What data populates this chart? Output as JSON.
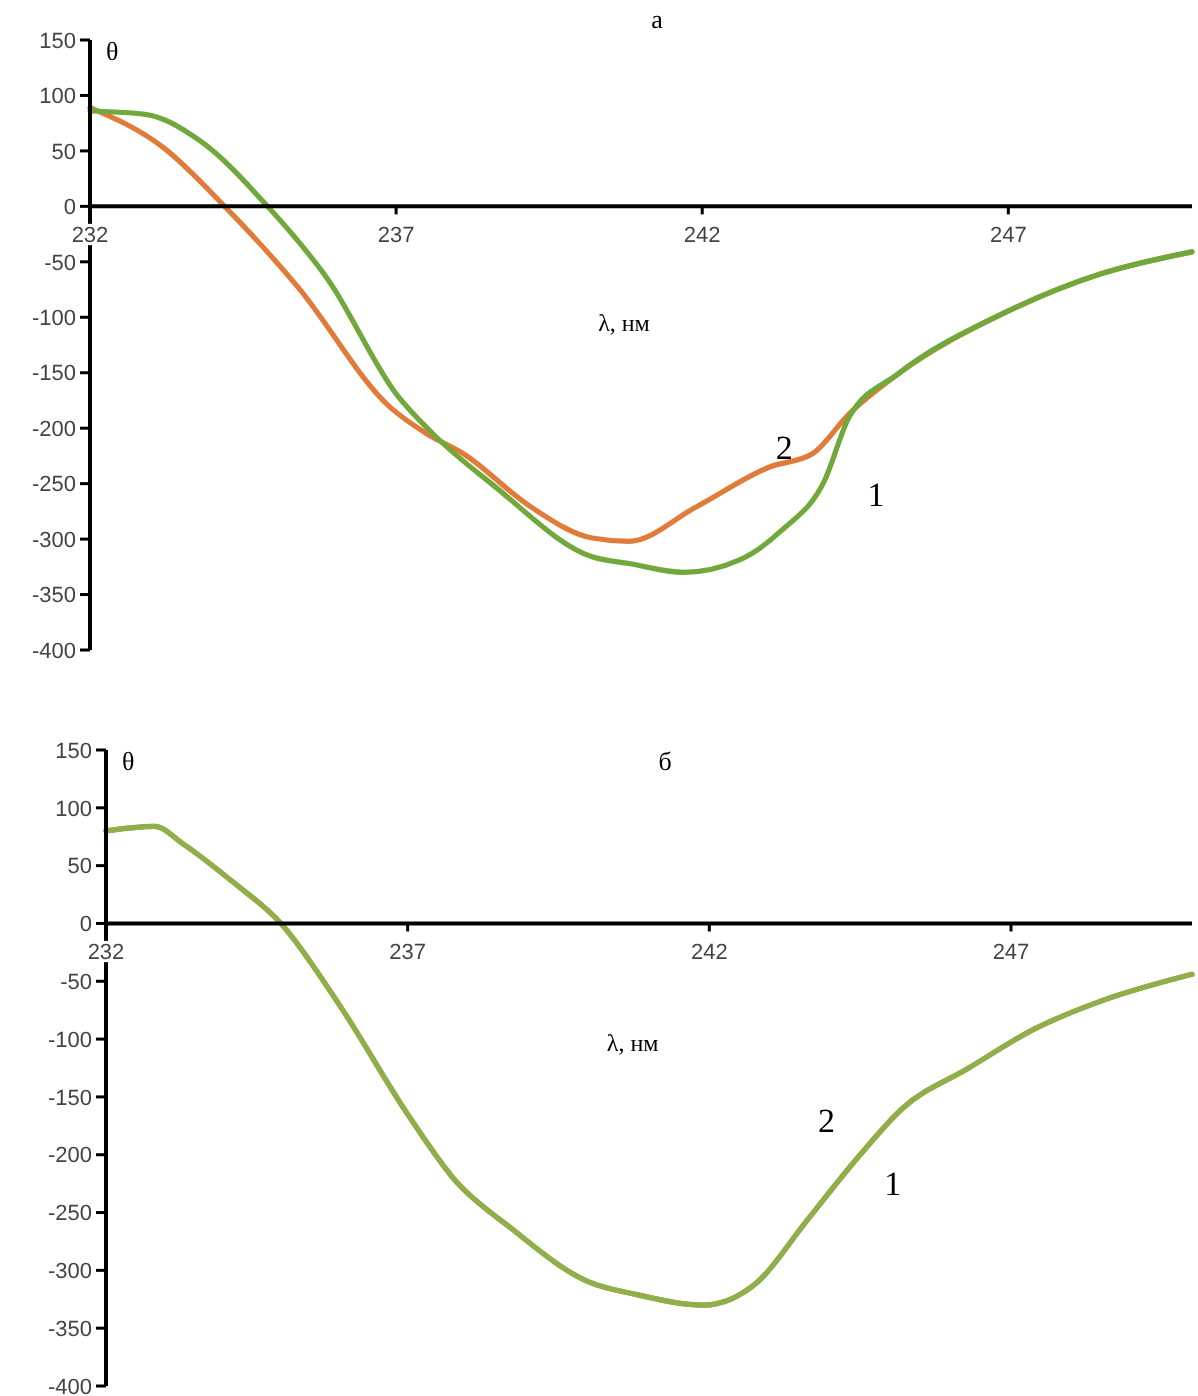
{
  "chart_data": [
    {
      "type": "line",
      "title": "а",
      "xlabel": "λ, нм",
      "ylabel": "θ",
      "xlim": [
        232,
        250
      ],
      "xticks": [
        232,
        237,
        242,
        247
      ],
      "ylim": [
        -400,
        150
      ],
      "yticks": [
        -400,
        -350,
        -300,
        -250,
        -200,
        -150,
        -100,
        -50,
        0,
        50,
        100,
        150
      ],
      "line_style": "solid",
      "series": [
        {
          "name": "2",
          "color": "#e07b39",
          "x": [
            232,
            233.2,
            234.2,
            235.4,
            236.9,
            237.5,
            238.1,
            239.2,
            240.2,
            240.8,
            241.9,
            243.1,
            243.8,
            244.4,
            245.2,
            246.9,
            248.5,
            250
          ],
          "values": [
            89,
            53,
            0,
            -73,
            -181,
            -205,
            -223,
            -271,
            -299,
            -302,
            -271,
            -235,
            -223,
            -187,
            -151,
            -97,
            -61,
            -41
          ]
        },
        {
          "name": "1",
          "color": "#70a83c",
          "x": [
            232,
            232.9,
            233.8,
            234.9,
            235.9,
            237,
            237.6,
            238.6,
            240.2,
            240.8,
            241.7,
            242.6,
            243.3,
            244,
            244.4,
            245.2,
            246.9,
            248.5,
            250
          ],
          "values": [
            86,
            83,
            59,
            0,
            -67,
            -169,
            -205,
            -252,
            -316,
            -322,
            -330,
            -319,
            -292,
            -247,
            -190,
            -151,
            -97,
            -61,
            -41
          ]
        }
      ]
    },
    {
      "type": "line",
      "title": "б",
      "xlabel": "λ, нм",
      "ylabel": "θ",
      "xlim": [
        232,
        250
      ],
      "xticks": [
        232,
        237,
        242,
        247
      ],
      "ylim": [
        -400,
        150
      ],
      "yticks": [
        -400,
        -350,
        -300,
        -250,
        -200,
        -150,
        -100,
        -50,
        0,
        50,
        100,
        150
      ],
      "line_style": "solid",
      "series": [
        {
          "name": "2",
          "color": "#e07b39",
          "x": [
            232,
            232.8,
            233.3,
            234.1,
            234.9,
            235.9,
            237,
            237.8,
            238.7,
            240,
            240.8,
            241.9,
            242.8,
            243.6,
            244.5,
            245.2,
            246.3,
            247.4,
            248.5,
            250
          ],
          "values": [
            80,
            84,
            68,
            36,
            0,
            -73,
            -165,
            -223,
            -263,
            -310,
            -321,
            -330,
            -310,
            -258,
            -200,
            -160,
            -125,
            -91,
            -67,
            -44
          ]
        },
        {
          "name": "1",
          "color": "#8db04a",
          "x": [
            232,
            232.8,
            233.3,
            234.1,
            234.9,
            235.9,
            237,
            237.8,
            238.7,
            240,
            240.8,
            241.9,
            242.8,
            243.6,
            244.5,
            245.2,
            246.3,
            247.4,
            248.5,
            250
          ],
          "values": [
            80,
            84,
            68,
            36,
            0,
            -73,
            -165,
            -223,
            -263,
            -310,
            -321,
            -330,
            -310,
            -258,
            -200,
            -160,
            -125,
            -91,
            -67,
            -44
          ]
        }
      ]
    }
  ]
}
